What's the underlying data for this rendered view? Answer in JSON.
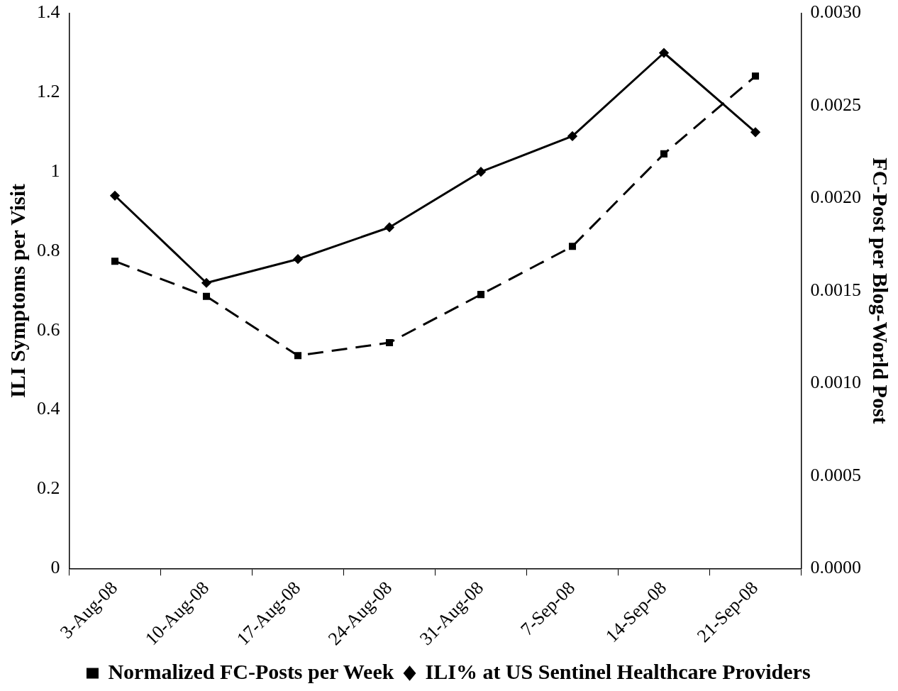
{
  "chart_data": {
    "type": "line",
    "ylabel": "ILI Symptoms per Visit",
    "y2label": "FC-Post per Blog-World Post",
    "categories": [
      "3-Aug-08",
      "10-Aug-08",
      "17-Aug-08",
      "24-Aug-08",
      "31-Aug-08",
      "7-Sep-08",
      "14-Sep-08",
      "21-Sep-08"
    ],
    "series": [
      {
        "name": "Normalized FC-Posts per Week",
        "color": "#000000",
        "axis": "y2",
        "marker": "square",
        "line_style": "dashed",
        "values": [
          0.00166,
          0.00147,
          0.00115,
          0.00122,
          0.00148,
          0.00174,
          0.00224,
          0.00266
        ]
      },
      {
        "name": "ILI% at US Sentinel Healthcare Providers",
        "color": "#000000",
        "axis": "y",
        "marker": "diamond",
        "line_style": "solid",
        "values": [
          0.94,
          0.72,
          0.78,
          0.86,
          1.0,
          1.09,
          1.3,
          1.1
        ]
      }
    ],
    "ylim": [
      0,
      1.4
    ],
    "yticks": [
      0,
      0.2,
      0.4,
      0.6,
      0.8,
      1,
      1.2,
      1.4
    ],
    "y2lim": [
      0,
      0.003
    ],
    "y2ticks": [
      {
        "value": 0,
        "label": "0.0000"
      },
      {
        "value": 0.0005,
        "label": "0.0005"
      },
      {
        "value": 0.001,
        "label": "0.0010"
      },
      {
        "value": 0.0015,
        "label": "0.0015"
      },
      {
        "value": 0.002,
        "label": "0.0020"
      },
      {
        "value": 0.0025,
        "label": "0.0025"
      },
      {
        "value": 0.003,
        "label": "0.0030"
      }
    ],
    "grid": false,
    "legend": "bottom"
  }
}
